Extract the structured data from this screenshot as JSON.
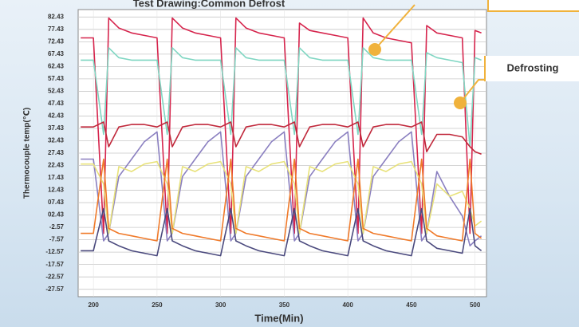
{
  "chart_data": {
    "type": "line",
    "title": "Test Drawing:Common Defrost",
    "xlabel": "Time(Min)",
    "ylabel": "Thermocouple temp(℃)",
    "annotations": [
      "Defrosting"
    ],
    "x": [
      190,
      200,
      208,
      212,
      220,
      230,
      240,
      250,
      258,
      262,
      270,
      280,
      290,
      300,
      308,
      312,
      320,
      330,
      340,
      350,
      358,
      362,
      370,
      380,
      390,
      400,
      408,
      412,
      420,
      430,
      440,
      450,
      458,
      462,
      470,
      480,
      490,
      496,
      500,
      505
    ],
    "xlim": [
      188,
      509
    ],
    "xticks": [
      200,
      250,
      300,
      350,
      400,
      450,
      500
    ],
    "ylim": [
      -30.57,
      85.43
    ],
    "yticks": [
      82.43,
      77.43,
      72.43,
      67.43,
      62.43,
      57.43,
      52.43,
      47.43,
      42.43,
      37.43,
      32.43,
      27.43,
      22.43,
      17.43,
      12.43,
      {
        "value": 7.43,
        "label": "07.43"
      },
      {
        "value": 2.43,
        "label": "02.43"
      },
      -2.57,
      -7.57,
      -12.57,
      -17.57,
      -22.57,
      -27.57
    ],
    "grid": true,
    "series": [
      {
        "color": "#d6254d",
        "values": [
          74,
          74,
          -5,
          82,
          78,
          76,
          75,
          74,
          -5,
          82,
          78,
          76,
          75,
          74,
          -5,
          82,
          78,
          76,
          75,
          74,
          -5,
          80,
          77,
          76,
          75,
          74,
          -5,
          82,
          76,
          74,
          73,
          72,
          -5,
          79,
          76,
          75,
          74,
          -5,
          77,
          76
        ]
      },
      {
        "color": "#7fd6c2",
        "values": [
          65,
          65,
          35,
          70,
          66,
          65,
          65,
          65,
          35,
          70,
          66,
          65,
          65,
          65,
          35,
          70,
          66,
          65,
          65,
          65,
          35,
          70,
          66,
          65,
          65,
          65,
          35,
          70,
          66,
          65,
          65,
          65,
          35,
          68,
          66,
          65,
          64,
          30,
          66,
          65
        ]
      },
      {
        "color": "#c0283b",
        "values": [
          38,
          38,
          40,
          30,
          38,
          39,
          39,
          38,
          40,
          30,
          38,
          39,
          39,
          38,
          40,
          30,
          38,
          39,
          39,
          38,
          40,
          30,
          38,
          39,
          39,
          38,
          40,
          30,
          38,
          39,
          39,
          38,
          40,
          28,
          35,
          35,
          34,
          30,
          28,
          27
        ]
      },
      {
        "color": "#8a7fc0",
        "values": [
          25,
          25,
          -8,
          -5,
          18,
          25,
          32,
          36,
          -8,
          -5,
          18,
          25,
          32,
          36,
          -8,
          -5,
          18,
          25,
          32,
          36,
          -8,
          -5,
          18,
          25,
          32,
          36,
          -8,
          -5,
          18,
          25,
          32,
          36,
          -8,
          -5,
          20,
          10,
          2,
          -10,
          -8,
          -6
        ]
      },
      {
        "color": "#e8e27a",
        "values": [
          23,
          23,
          15,
          -5,
          22,
          20,
          23,
          24,
          15,
          -5,
          22,
          20,
          23,
          24,
          15,
          -5,
          22,
          20,
          23,
          24,
          15,
          -5,
          22,
          20,
          23,
          24,
          15,
          -5,
          22,
          20,
          23,
          24,
          15,
          -5,
          15,
          10,
          12,
          5,
          -2,
          0
        ]
      },
      {
        "color": "#f07a2a",
        "values": [
          -5,
          -5,
          25,
          -3,
          -5,
          -6,
          -7,
          -8,
          25,
          -3,
          -5,
          -6,
          -7,
          -8,
          25,
          -3,
          -5,
          -6,
          -7,
          -8,
          25,
          -3,
          -5,
          -6,
          -7,
          -8,
          25,
          -3,
          -5,
          -6,
          -7,
          -8,
          25,
          -3,
          -6,
          -7,
          -8,
          25,
          -5,
          -7
        ]
      },
      {
        "color": "#4b4a7e",
        "values": [
          -12,
          -12,
          5,
          -8,
          -10,
          -12,
          -13,
          -14,
          5,
          -8,
          -10,
          -12,
          -13,
          -14,
          5,
          -8,
          -10,
          -12,
          -13,
          -14,
          5,
          -8,
          -10,
          -12,
          -13,
          -14,
          5,
          -8,
          -10,
          -12,
          -13,
          -14,
          5,
          -8,
          -11,
          -12,
          -13,
          5,
          -10,
          -12
        ]
      }
    ]
  }
}
